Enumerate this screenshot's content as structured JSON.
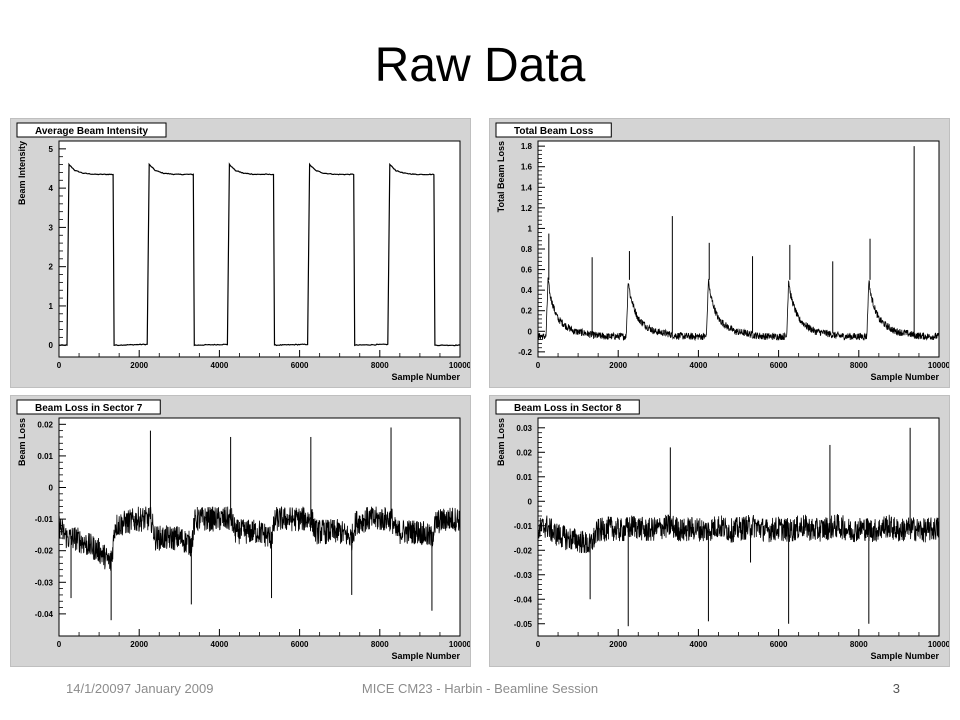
{
  "slide": {
    "title": "Raw Data",
    "footer_date": "14/1/20097 January 2009",
    "footer_title": "MICE CM23 - Harbin - Beamline Session",
    "page_number": "3"
  },
  "chart_data": [
    {
      "type": "line",
      "title": "Average Beam Intensity",
      "xlabel": "Sample Number",
      "ylabel": "Beam Intensity",
      "xlim": [
        0,
        10000
      ],
      "ylim": [
        -0.3,
        5.2
      ],
      "xticks": [
        0,
        2000,
        4000,
        6000,
        8000,
        10000
      ],
      "yticks": [
        0,
        1,
        2,
        3,
        4,
        5
      ],
      "grid": false,
      "series": [
        {
          "x": [
            0,
            200,
            250,
            400,
            600,
            900,
            1350,
            1360,
            2100,
            2200,
            2250,
            2400,
            2600,
            2900,
            3350,
            3360,
            4100,
            4200,
            4250,
            4400,
            4600,
            4900,
            5350,
            5360,
            6100,
            6200,
            6250,
            6400,
            6600,
            6900,
            7350,
            7360,
            8100,
            8200,
            8250,
            8400,
            8600,
            8900,
            9350,
            9360,
            10000
          ],
          "y": [
            0,
            0,
            4.6,
            4.45,
            4.38,
            4.35,
            4.35,
            0,
            0.02,
            0.02,
            4.6,
            4.45,
            4.38,
            4.35,
            4.35,
            0,
            0.02,
            0.02,
            4.6,
            4.45,
            4.38,
            4.35,
            4.35,
            0,
            0.02,
            0.02,
            4.6,
            4.45,
            4.38,
            4.35,
            4.35,
            0,
            0.02,
            0.02,
            4.6,
            4.45,
            4.38,
            4.35,
            4.35,
            0,
            0
          ]
        }
      ]
    },
    {
      "type": "line",
      "title": "Total Beam Loss",
      "xlabel": "Sample Number",
      "ylabel": "Total Beam Loss",
      "xlim": [
        0,
        10000
      ],
      "ylim": [
        -0.25,
        1.85
      ],
      "xticks": [
        0,
        2000,
        4000,
        6000,
        8000,
        10000
      ],
      "yticks": [
        -0.2,
        0,
        0.2,
        0.4,
        0.6,
        0.8,
        1,
        1.2,
        1.4,
        1.6,
        1.8
      ],
      "grid": false,
      "series": [
        {
          "x": [
            0,
            200,
            250,
            300,
            400,
            500,
            700,
            900,
            1200,
            1400,
            1700,
            2000,
            2200,
            2250,
            2300,
            2400,
            2500,
            2700,
            2900,
            3200,
            3400,
            3700,
            4000,
            4200,
            4250,
            4300,
            4400,
            4500,
            4700,
            4900,
            5200,
            5400,
            5700,
            6000,
            6200,
            6250,
            6300,
            6400,
            6500,
            6700,
            6900,
            7200,
            7400,
            7700,
            8000,
            8200,
            8250,
            8300,
            8400,
            8500,
            8700,
            8900,
            9200,
            9400,
            9700,
            10000
          ],
          "y": [
            -0.05,
            -0.05,
            0.5,
            0.35,
            0.22,
            0.12,
            0.05,
            0.0,
            -0.02,
            -0.04,
            -0.05,
            -0.05,
            -0.05,
            0.5,
            0.35,
            0.22,
            0.12,
            0.05,
            0.0,
            -0.02,
            -0.04,
            -0.05,
            -0.05,
            -0.05,
            0.5,
            0.35,
            0.22,
            0.12,
            0.05,
            0.0,
            -0.02,
            -0.04,
            -0.05,
            -0.05,
            -0.05,
            0.5,
            0.35,
            0.22,
            0.12,
            0.05,
            0.0,
            -0.02,
            -0.04,
            -0.05,
            -0.05,
            -0.05,
            0.5,
            0.35,
            0.22,
            0.12,
            0.05,
            0.0,
            -0.02,
            -0.04,
            -0.05,
            -0.05
          ]
        }
      ],
      "spikes": [
        {
          "x": 270,
          "y": 0.95
        },
        {
          "x": 1350,
          "y": 0.72
        },
        {
          "x": 2280,
          "y": 0.78
        },
        {
          "x": 3350,
          "y": 1.12
        },
        {
          "x": 4270,
          "y": 0.86
        },
        {
          "x": 5350,
          "y": 0.73
        },
        {
          "x": 6280,
          "y": 0.84
        },
        {
          "x": 7350,
          "y": 0.68
        },
        {
          "x": 8280,
          "y": 0.9
        },
        {
          "x": 9380,
          "y": 1.8
        }
      ]
    },
    {
      "type": "line",
      "title": "Beam Loss in Sector 7",
      "xlabel": "Sample Number",
      "ylabel": "Beam Loss",
      "xlim": [
        0,
        10000
      ],
      "ylim": [
        -0.047,
        0.022
      ],
      "xticks": [
        0,
        2000,
        4000,
        6000,
        8000,
        10000
      ],
      "yticks": [
        -0.04,
        -0.03,
        -0.02,
        -0.01,
        0,
        0.01,
        0.02
      ],
      "grid": false,
      "series": [
        {
          "x": [
            0,
            200,
            400,
            700,
            1000,
            1300,
            1400,
            1700,
            2000,
            2300,
            2400,
            2700,
            3000,
            3300,
            3400,
            3700,
            4000,
            4300,
            4400,
            4700,
            5000,
            5300,
            5400,
            5700,
            6000,
            6300,
            6400,
            6700,
            7000,
            7300,
            7400,
            7700,
            8000,
            8300,
            8400,
            8700,
            9000,
            9300,
            9400,
            9700,
            10000
          ],
          "y": [
            -0.012,
            -0.016,
            -0.016,
            -0.018,
            -0.02,
            -0.024,
            -0.012,
            -0.011,
            -0.01,
            -0.01,
            -0.016,
            -0.016,
            -0.016,
            -0.018,
            -0.01,
            -0.01,
            -0.01,
            -0.01,
            -0.014,
            -0.014,
            -0.014,
            -0.016,
            -0.01,
            -0.01,
            -0.01,
            -0.01,
            -0.014,
            -0.014,
            -0.014,
            -0.016,
            -0.011,
            -0.01,
            -0.01,
            -0.01,
            -0.014,
            -0.014,
            -0.014,
            -0.016,
            -0.011,
            -0.01,
            -0.01
          ]
        }
      ],
      "spikes": [
        {
          "x": 300,
          "y": -0.035
        },
        {
          "x": 1300,
          "y": -0.042
        },
        {
          "x": 2280,
          "y": 0.018
        },
        {
          "x": 3300,
          "y": -0.037
        },
        {
          "x": 4280,
          "y": 0.016
        },
        {
          "x": 5300,
          "y": -0.035
        },
        {
          "x": 6280,
          "y": 0.016
        },
        {
          "x": 7300,
          "y": -0.034
        },
        {
          "x": 8280,
          "y": 0.019
        },
        {
          "x": 9300,
          "y": -0.039
        }
      ]
    },
    {
      "type": "line",
      "title": "Beam Loss in Sector 8",
      "xlabel": "Sample Number",
      "ylabel": "Beam Loss",
      "xlim": [
        0,
        10000
      ],
      "ylim": [
        -0.055,
        0.034
      ],
      "xticks": [
        0,
        2000,
        4000,
        6000,
        8000,
        10000
      ],
      "yticks": [
        -0.05,
        -0.04,
        -0.03,
        -0.02,
        -0.01,
        0,
        0.01,
        0.02,
        0.03
      ],
      "grid": false,
      "series": [
        {
          "x": [
            0,
            200,
            400,
            700,
            1000,
            1300,
            1500,
            1800,
            2100,
            2400,
            2700,
            3000,
            3300,
            3600,
            3900,
            4200,
            4500,
            4800,
            5100,
            5400,
            5700,
            6000,
            6300,
            6600,
            6900,
            7200,
            7500,
            7800,
            8100,
            8400,
            8700,
            9000,
            9300,
            9600,
            10000
          ],
          "y": [
            -0.012,
            -0.01,
            -0.013,
            -0.015,
            -0.016,
            -0.018,
            -0.012,
            -0.011,
            -0.012,
            -0.01,
            -0.012,
            -0.011,
            -0.01,
            -0.012,
            -0.011,
            -0.012,
            -0.01,
            -0.012,
            -0.011,
            -0.01,
            -0.012,
            -0.011,
            -0.012,
            -0.01,
            -0.012,
            -0.011,
            -0.01,
            -0.012,
            -0.011,
            -0.012,
            -0.01,
            -0.012,
            -0.011,
            -0.012,
            -0.011
          ]
        }
      ],
      "spikes": [
        {
          "x": 1300,
          "y": -0.04
        },
        {
          "x": 2250,
          "y": -0.051
        },
        {
          "x": 3300,
          "y": 0.022
        },
        {
          "x": 4250,
          "y": -0.049
        },
        {
          "x": 5300,
          "y": -0.025
        },
        {
          "x": 6250,
          "y": -0.05
        },
        {
          "x": 7280,
          "y": 0.023
        },
        {
          "x": 8250,
          "y": -0.05
        },
        {
          "x": 9280,
          "y": 0.03
        }
      ]
    }
  ]
}
